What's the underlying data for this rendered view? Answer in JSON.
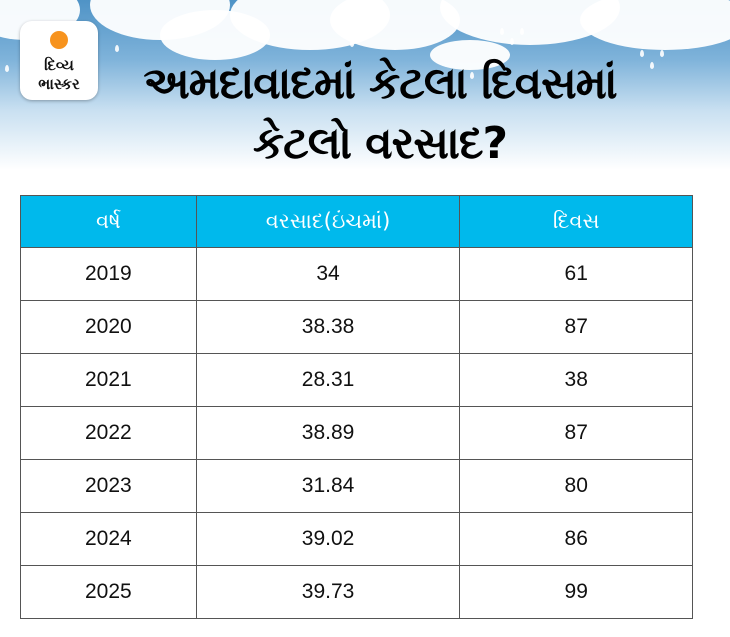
{
  "logo": {
    "line1": "દિવ્ય",
    "line2": "ભાસ્કર"
  },
  "title": {
    "line1": "અમદાવાદમાં કેટલા દિવસમાં",
    "line2": "કેટલો વરસાદ?"
  },
  "colors": {
    "header_bg": "#00b9ec",
    "logo_sun": "#f7931e"
  },
  "table": {
    "headers": [
      "વર્ષ",
      "વરસાદ(ઇંચમાં)",
      "દિવસ"
    ],
    "rows": [
      [
        "2019",
        "34",
        "61"
      ],
      [
        "2020",
        "38.38",
        "87"
      ],
      [
        "2021",
        "28.31",
        "38"
      ],
      [
        "2022",
        "38.89",
        "87"
      ],
      [
        "2023",
        "31.84",
        "80"
      ],
      [
        "2024",
        "39.02",
        "86"
      ],
      [
        "2025",
        "39.73",
        "99"
      ]
    ]
  }
}
